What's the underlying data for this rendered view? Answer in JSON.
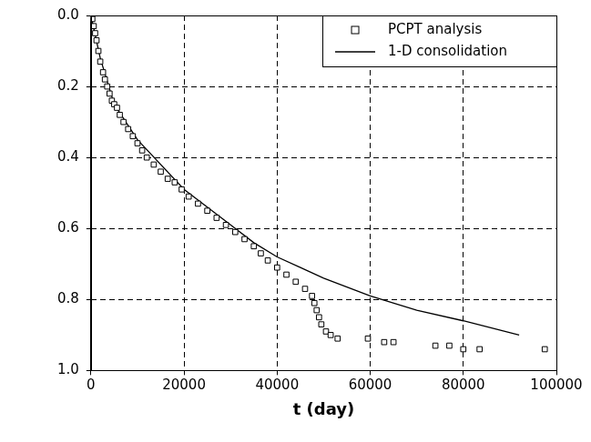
{
  "chart_data": {
    "type": "scatter",
    "x_label": "t (day)",
    "xlim": [
      0,
      100000
    ],
    "xticks": [
      0,
      20000,
      40000,
      60000,
      80000,
      100000
    ],
    "ylim": [
      0,
      1
    ],
    "yticks": [
      {
        "value": 0,
        "label": "0.0"
      },
      0.2,
      0.4,
      0.6,
      0.8,
      {
        "value": 1,
        "label": "1.0"
      }
    ],
    "grid": true,
    "legend": "upper right",
    "series": [
      {
        "name": "PCPT analysis",
        "type": "scatter",
        "color": "#000000",
        "marker": "square",
        "x": [
          0,
          300,
          600,
          900,
          1200,
          1600,
          2000,
          2600,
          3000,
          3500,
          4000,
          4500,
          5000,
          5600,
          6200,
          7000,
          8000,
          9000,
          10000,
          11000,
          12000,
          13500,
          15000,
          16500,
          18000,
          19500,
          21000,
          23000,
          25000,
          27000,
          29000,
          31000,
          33000,
          35000,
          36500,
          38000,
          40000,
          42000,
          44000,
          46000,
          47500,
          48000,
          48500,
          49000,
          49500,
          50500,
          51500,
          53000,
          59500,
          63000,
          65000,
          74000,
          77000,
          80000,
          83500,
          97500
        ],
        "values": [
          0.0,
          0.01,
          0.03,
          0.05,
          0.07,
          0.1,
          0.13,
          0.16,
          0.18,
          0.2,
          0.22,
          0.24,
          0.25,
          0.26,
          0.28,
          0.3,
          0.32,
          0.34,
          0.36,
          0.38,
          0.4,
          0.42,
          0.44,
          0.46,
          0.47,
          0.49,
          0.51,
          0.53,
          0.55,
          0.57,
          0.59,
          0.61,
          0.63,
          0.65,
          0.67,
          0.69,
          0.71,
          0.73,
          0.75,
          0.77,
          0.79,
          0.81,
          0.83,
          0.85,
          0.87,
          0.89,
          0.9,
          0.91,
          0.91,
          0.92,
          0.92,
          0.93,
          0.93,
          0.94,
          0.94,
          0.94
        ]
      },
      {
        "name": "1-D consolidation",
        "type": "line",
        "color": "#000000",
        "line_style": "solid",
        "x": [
          0,
          2000,
          5000,
          10000,
          20000,
          30000,
          35000,
          40000,
          45000,
          50000,
          60000,
          70000,
          80000,
          92000
        ],
        "values": [
          0.0,
          0.12,
          0.25,
          0.35,
          0.49,
          0.59,
          0.64,
          0.68,
          0.71,
          0.74,
          0.79,
          0.83,
          0.86,
          0.9
        ]
      }
    ]
  }
}
